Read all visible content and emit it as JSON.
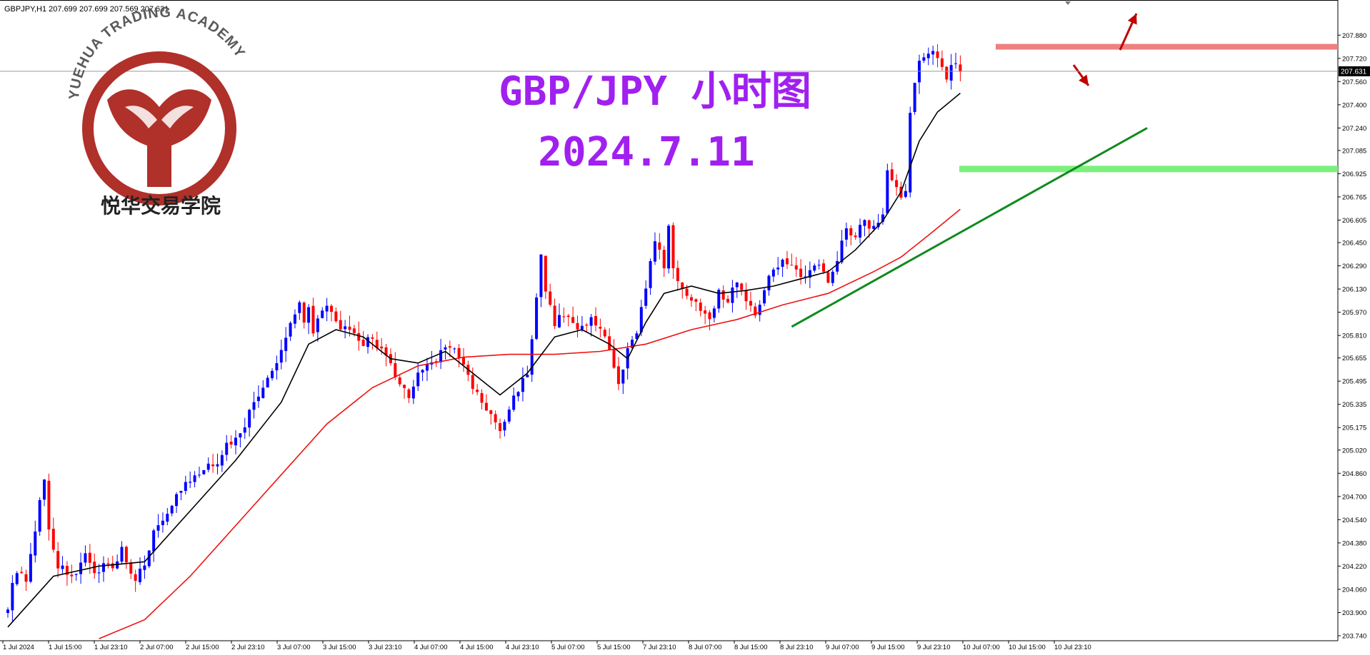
{
  "header": {
    "symbol_info": "GBPJPY,H1  207.699 207.699 207.569 207.631"
  },
  "logo": {
    "arc_text": "YUEHUA TRADING ACADEMY",
    "bottom_text": "悦华交易学院",
    "color": "#b0302a"
  },
  "overlay_title": {
    "line1": "GBP/JPY 小时图",
    "line2": "2024.7.11",
    "color": "#a020f0"
  },
  "chart_data": {
    "type": "candlestick",
    "ylim": [
      203.74,
      207.96
    ],
    "y_ticks": [
      "207.880",
      "207.720",
      "207.560",
      "207.400",
      "207.240",
      "207.085",
      "206.925",
      "206.765",
      "206.605",
      "206.450",
      "206.290",
      "206.130",
      "205.970",
      "205.810",
      "205.655",
      "205.495",
      "205.335",
      "205.175",
      "205.020",
      "204.860",
      "204.700",
      "204.540",
      "204.380",
      "204.220",
      "204.060",
      "203.900",
      "203.740"
    ],
    "x_ticks": [
      "1 Jul 2024",
      "1 Jul 15:00",
      "1 Jul 23:10",
      "2 Jul 07:00",
      "2 Jul 15:00",
      "2 Jul 23:10",
      "3 Jul 07:00",
      "3 Jul 15:00",
      "3 Jul 23:10",
      "4 Jul 07:00",
      "4 Jul 15:00",
      "4 Jul 23:10",
      "5 Jul 07:00",
      "5 Jul 15:00",
      "7 Jul 23:10",
      "8 Jul 07:00",
      "8 Jul 15:00",
      "8 Jul 23:10",
      "9 Jul 07:00",
      "9 Jul 15:00",
      "9 Jul 23:10",
      "10 Jul 07:00",
      "10 Jul 15:00",
      "10 Jul 23:10"
    ],
    "current_price": "207.631",
    "close_path": [
      [
        0,
        203.95
      ],
      [
        2,
        204.2
      ],
      [
        4,
        204.1
      ],
      [
        6,
        204.45
      ],
      [
        7,
        204.7
      ],
      [
        8,
        204.8
      ],
      [
        9,
        204.48
      ],
      [
        11,
        204.22
      ],
      [
        13,
        204.18
      ],
      [
        15,
        204.15
      ],
      [
        17,
        204.28
      ],
      [
        19,
        204.16
      ],
      [
        21,
        204.25
      ],
      [
        23,
        204.2
      ],
      [
        25,
        204.35
      ],
      [
        27,
        204.15
      ],
      [
        28,
        204.1
      ],
      [
        30,
        204.25
      ],
      [
        32,
        204.45
      ],
      [
        34,
        204.55
      ],
      [
        36,
        204.65
      ],
      [
        38,
        204.75
      ],
      [
        40,
        204.8
      ],
      [
        42,
        204.85
      ],
      [
        44,
        204.9
      ],
      [
        46,
        204.95
      ],
      [
        48,
        205.05
      ],
      [
        50,
        205.1
      ],
      [
        52,
        205.2
      ],
      [
        54,
        205.35
      ],
      [
        56,
        205.45
      ],
      [
        58,
        205.55
      ],
      [
        60,
        205.7
      ],
      [
        62,
        205.9
      ],
      [
        64,
        206.05
      ],
      [
        65,
        205.9
      ],
      [
        66,
        206.0
      ],
      [
        67,
        205.85
      ],
      [
        68,
        205.95
      ],
      [
        70,
        206.0
      ],
      [
        72,
        205.9
      ],
      [
        74,
        205.85
      ],
      [
        76,
        205.8
      ],
      [
        78,
        205.75
      ],
      [
        80,
        205.8
      ],
      [
        82,
        205.7
      ],
      [
        84,
        205.6
      ],
      [
        86,
        205.45
      ],
      [
        88,
        205.4
      ],
      [
        90,
        205.55
      ],
      [
        92,
        205.6
      ],
      [
        94,
        205.65
      ],
      [
        96,
        205.75
      ],
      [
        98,
        205.7
      ],
      [
        100,
        205.6
      ],
      [
        102,
        205.45
      ],
      [
        104,
        205.35
      ],
      [
        106,
        205.25
      ],
      [
        108,
        205.15
      ],
      [
        110,
        205.3
      ],
      [
        112,
        205.45
      ],
      [
        114,
        205.55
      ],
      [
        116,
        206.05
      ],
      [
        117,
        206.35
      ],
      [
        118,
        206.1
      ],
      [
        120,
        205.9
      ],
      [
        122,
        205.95
      ],
      [
        124,
        205.9
      ],
      [
        126,
        205.85
      ],
      [
        128,
        205.95
      ],
      [
        130,
        205.85
      ],
      [
        132,
        205.7
      ],
      [
        134,
        205.45
      ],
      [
        136,
        205.7
      ],
      [
        138,
        205.85
      ],
      [
        140,
        206.15
      ],
      [
        142,
        206.45
      ],
      [
        144,
        206.3
      ],
      [
        145,
        206.55
      ],
      [
        146,
        206.25
      ],
      [
        148,
        206.15
      ],
      [
        150,
        206.05
      ],
      [
        152,
        206.0
      ],
      [
        154,
        205.95
      ],
      [
        156,
        206.1
      ],
      [
        158,
        206.05
      ],
      [
        160,
        206.2
      ],
      [
        162,
        206.05
      ],
      [
        164,
        205.95
      ],
      [
        166,
        206.15
      ],
      [
        168,
        206.25
      ],
      [
        170,
        206.35
      ],
      [
        172,
        206.3
      ],
      [
        174,
        206.2
      ],
      [
        176,
        206.25
      ],
      [
        178,
        206.3
      ],
      [
        180,
        206.2
      ],
      [
        182,
        206.35
      ],
      [
        184,
        206.55
      ],
      [
        186,
        206.5
      ],
      [
        188,
        206.6
      ],
      [
        190,
        206.55
      ],
      [
        192,
        206.65
      ],
      [
        193,
        206.95
      ],
      [
        194,
        206.9
      ],
      [
        196,
        206.75
      ],
      [
        197,
        206.8
      ],
      [
        198,
        207.35
      ],
      [
        200,
        207.7
      ],
      [
        202,
        207.78
      ],
      [
        203,
        207.8
      ],
      [
        205,
        207.65
      ],
      [
        206,
        207.6
      ],
      [
        208,
        207.7
      ],
      [
        209,
        207.63
      ]
    ],
    "ma_fast": [
      [
        0,
        203.8
      ],
      [
        10,
        204.15
      ],
      [
        20,
        204.22
      ],
      [
        30,
        204.25
      ],
      [
        40,
        204.6
      ],
      [
        50,
        204.95
      ],
      [
        60,
        205.35
      ],
      [
        66,
        205.75
      ],
      [
        72,
        205.85
      ],
      [
        78,
        205.8
      ],
      [
        84,
        205.65
      ],
      [
        90,
        205.62
      ],
      [
        96,
        205.7
      ],
      [
        102,
        205.55
      ],
      [
        108,
        205.4
      ],
      [
        114,
        205.55
      ],
      [
        120,
        205.8
      ],
      [
        126,
        205.85
      ],
      [
        132,
        205.75
      ],
      [
        136,
        205.65
      ],
      [
        140,
        205.9
      ],
      [
        144,
        206.1
      ],
      [
        150,
        206.15
      ],
      [
        156,
        206.1
      ],
      [
        162,
        206.12
      ],
      [
        168,
        206.15
      ],
      [
        174,
        206.2
      ],
      [
        180,
        206.25
      ],
      [
        186,
        206.4
      ],
      [
        192,
        206.6
      ],
      [
        196,
        206.8
      ],
      [
        200,
        207.15
      ],
      [
        204,
        207.35
      ],
      [
        209,
        207.48
      ]
    ],
    "ma_slow": [
      [
        20,
        203.72
      ],
      [
        30,
        203.85
      ],
      [
        40,
        204.15
      ],
      [
        50,
        204.5
      ],
      [
        60,
        204.85
      ],
      [
        70,
        205.2
      ],
      [
        80,
        205.45
      ],
      [
        90,
        205.6
      ],
      [
        100,
        205.66
      ],
      [
        110,
        205.68
      ],
      [
        120,
        205.68
      ],
      [
        130,
        205.7
      ],
      [
        140,
        205.75
      ],
      [
        150,
        205.85
      ],
      [
        160,
        205.92
      ],
      [
        170,
        206.02
      ],
      [
        180,
        206.1
      ],
      [
        190,
        206.25
      ],
      [
        196,
        206.35
      ],
      [
        202,
        206.5
      ],
      [
        209,
        206.68
      ]
    ],
    "resistance_level": 207.8,
    "support_level": 206.96,
    "trendline": [
      [
        172,
        205.87
      ],
      [
        250,
        207.24
      ]
    ],
    "colors": {
      "bull": "#0000ff",
      "bear": "#ff0000",
      "ma_fast": "#000000",
      "ma_slow": "#ee1111",
      "resistance": "#f08080",
      "support": "#7cf07c",
      "trendline": "#0f8a1e",
      "arrow": "#c00000"
    },
    "grid": false,
    "legend": "none"
  }
}
